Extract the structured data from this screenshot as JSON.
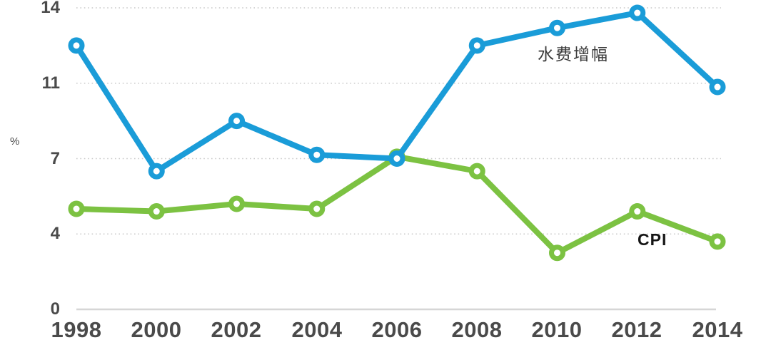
{
  "chart_data": {
    "type": "line",
    "title": "",
    "xlabel": "",
    "ylabel": "%",
    "categories": [
      "1998",
      "2000",
      "2002",
      "2004",
      "2006",
      "2008",
      "2010",
      "2012",
      "2014"
    ],
    "y_ticks": [
      "14",
      "11",
      "7",
      "4",
      "0"
    ],
    "y_tick_values": [
      14,
      11,
      7,
      4,
      0
    ],
    "grid": "horizontal-dotted",
    "legend_position": "inline-annotations",
    "background": "#ffffff",
    "axis_text_color": "#4a4a4a",
    "gridline_color": "#c9c9c9",
    "baseline_color": "#d6d6d6",
    "series": [
      {
        "id": "cpi",
        "name": "CPI",
        "color": "#7CC242",
        "values": [
          5.0,
          4.9,
          5.2,
          5.0,
          7.1,
          6.5,
          3.0,
          4.9,
          3.6
        ]
      },
      {
        "id": "water-fee-growth",
        "name": "水费增幅",
        "color": "#1A9CD8",
        "values": [
          12.5,
          6.5,
          9.0,
          7.2,
          7.0,
          12.5,
          13.2,
          13.8,
          10.8
        ]
      }
    ]
  }
}
